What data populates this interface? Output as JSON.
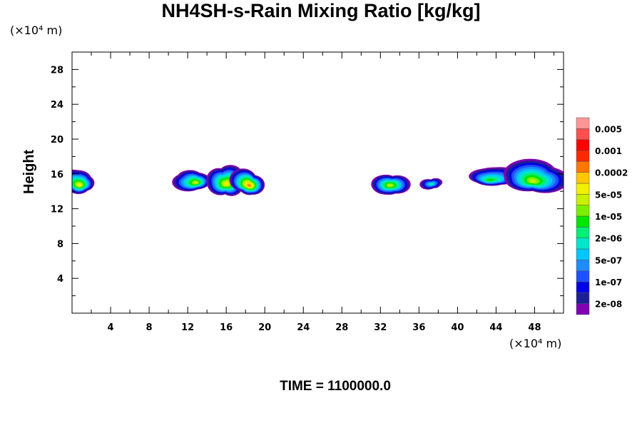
{
  "chart_data": {
    "type": "heatmap",
    "title": "NH4SH-s-Rain Mixing Ratio [kg/kg]",
    "ylabel": "Height",
    "xlabel": "",
    "x_unit": "(×10⁴ m)",
    "y_unit": "(×10⁴ m)",
    "footer": "TIME = 1100000.0",
    "xlim": [
      0,
      51
    ],
    "ylim": [
      0,
      30
    ],
    "x_ticks": [
      "4",
      "8",
      "12",
      "16",
      "20",
      "24",
      "28",
      "32",
      "36",
      "40",
      "44",
      "48"
    ],
    "y_ticks": [
      "4",
      "8",
      "12",
      "16",
      "20",
      "24",
      "28"
    ],
    "colorbar": {
      "colors": [
        "#7f00b2",
        "#1e1e96",
        "#0000e6",
        "#1e50ff",
        "#1e8cff",
        "#00c8ff",
        "#00e6c8",
        "#00f078",
        "#00e600",
        "#78f000",
        "#c8f000",
        "#f0f000",
        "#ffc800",
        "#ff7800",
        "#ff2800",
        "#ff0000",
        "#ff5050",
        "#ff9696"
      ],
      "labels": [
        "2e-08",
        "1e-07",
        "5e-07",
        "2e-06",
        "1e-05",
        "5e-05",
        "0.0002",
        "0.001",
        "0.005"
      ]
    },
    "cloud_regions": [
      {
        "x_center": 0.8,
        "y_center": 15.0,
        "width": 3.0,
        "height": 2.6,
        "max_level": 11
      },
      {
        "x_center": 12.9,
        "y_center": 15.3,
        "width": 4.0,
        "height": 2.6,
        "max_level": 10
      },
      {
        "x_center": 16.0,
        "y_center": 15.3,
        "width": 3.6,
        "height": 3.8,
        "max_level": 11
      },
      {
        "x_center": 18.4,
        "y_center": 15.0,
        "width": 3.0,
        "height": 2.8,
        "max_level": 13
      },
      {
        "x_center": 33.0,
        "y_center": 15.0,
        "width": 3.4,
        "height": 2.6,
        "max_level": 10
      },
      {
        "x_center": 37.3,
        "y_center": 15.0,
        "width": 2.0,
        "height": 1.4,
        "max_level": 6
      },
      {
        "x_center": 43.3,
        "y_center": 15.5,
        "width": 5.0,
        "height": 2.2,
        "max_level": 8
      },
      {
        "x_center": 47.8,
        "y_center": 15.6,
        "width": 6.0,
        "height": 3.8,
        "max_level": 10
      }
    ]
  }
}
